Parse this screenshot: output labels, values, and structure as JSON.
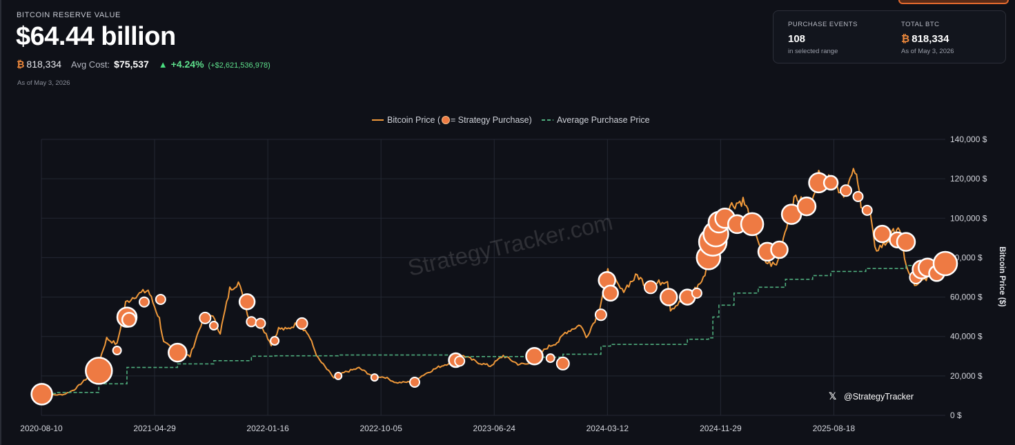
{
  "header": {
    "label": "BITCOIN RESERVE VALUE",
    "value": "$64.44 billion",
    "btc_symbol": "₿",
    "btc_amount": "818,334",
    "avg_cost_label": "Avg Cost:",
    "avg_cost": "$75,537",
    "change_pct": "+4.24%",
    "change_abs": "(+$2,621,536,978)",
    "as_of": "As of May 3, 2026"
  },
  "stats": {
    "purchase_events_label": "PURCHASE EVENTS",
    "purchase_events": "108",
    "purchase_events_sub": "in selected range",
    "total_btc_label": "TOTAL BTC",
    "total_btc": "818,334",
    "total_btc_sub": "As of May 3, 2026"
  },
  "colors": {
    "price_line": "#f0993a",
    "purchase_dot": "#ee7a43",
    "avg_line": "#4fae7e",
    "background": "#0f1118"
  },
  "chart_data": {
    "type": "line",
    "legend": {
      "placement": "top-center",
      "price": "Bitcoin Price (",
      "purchase": " = Strategy Purchase)",
      "avg": "Average Purchase Price"
    },
    "ylabel": "Bitcoin Price ($)",
    "y_ticks": [
      "0 $",
      "20,000 $",
      "40,000 $",
      "60,000 $",
      "80,000 $",
      "100,000 $",
      "120,000 $",
      "140,000 $"
    ],
    "ylim": [
      0,
      140000
    ],
    "x_ticks": [
      "2020-08-10",
      "2021-04-29",
      "2022-01-16",
      "2022-10-05",
      "2023-06-24",
      "2024-03-12",
      "2024-11-29",
      "2025-08-18"
    ],
    "xlim": [
      "2020-08-10",
      "2026-05-03"
    ],
    "grid": true,
    "watermark": "StrategyTracker.com",
    "handle": "@StrategyTracker",
    "series": [
      {
        "name": "Bitcoin Price",
        "x": [
          "2020-08-10",
          "2020-09-05",
          "2020-10-01",
          "2020-10-25",
          "2020-11-20",
          "2020-12-15",
          "2021-01-08",
          "2021-02-01",
          "2021-02-21",
          "2021-03-13",
          "2021-04-14",
          "2021-05-10",
          "2021-05-20",
          "2021-06-22",
          "2021-07-20",
          "2021-08-14",
          "2021-09-07",
          "2021-09-28",
          "2021-10-20",
          "2021-11-09",
          "2021-12-04",
          "2021-12-31",
          "2022-01-24",
          "2022-02-10",
          "2022-03-01",
          "2022-03-28",
          "2022-04-20",
          "2022-05-12",
          "2022-06-18",
          "2022-07-15",
          "2022-08-15",
          "2022-09-15",
          "2022-10-15",
          "2022-11-09",
          "2022-12-15",
          "2023-01-15",
          "2023-02-15",
          "2023-03-17",
          "2023-04-14",
          "2023-05-15",
          "2023-06-15",
          "2023-07-15",
          "2023-08-18",
          "2023-09-11",
          "2023-10-25",
          "2023-11-20",
          "2023-12-05",
          "2024-01-10",
          "2024-01-23",
          "2024-02-20",
          "2024-03-13",
          "2024-04-15",
          "2024-05-20",
          "2024-06-15",
          "2024-07-29",
          "2024-08-05",
          "2024-09-15",
          "2024-10-20",
          "2024-11-12",
          "2024-11-22",
          "2024-12-17",
          "2025-01-20",
          "2025-02-15",
          "2025-03-10",
          "2025-04-07",
          "2025-05-01",
          "2025-05-22",
          "2025-06-20",
          "2025-07-14",
          "2025-08-14",
          "2025-09-10",
          "2025-10-06",
          "2025-10-20",
          "2025-11-10",
          "2025-11-21",
          "2025-12-15",
          "2026-01-14",
          "2026-02-05",
          "2026-02-25",
          "2026-03-20",
          "2026-04-10",
          "2026-05-03"
        ],
        "y": [
          11600,
          10300,
          10600,
          13000,
          18200,
          22500,
          39000,
          36000,
          57000,
          60500,
          63500,
          49000,
          37000,
          31500,
          30000,
          46000,
          51500,
          42000,
          64000,
          67500,
          49000,
          46500,
          36000,
          44000,
          43500,
          47000,
          41000,
          29000,
          19000,
          22000,
          24000,
          20000,
          19300,
          16500,
          17000,
          21000,
          24500,
          27000,
          30300,
          27000,
          25000,
          30300,
          26000,
          26000,
          34500,
          37500,
          42000,
          46000,
          39500,
          52000,
          73000,
          63000,
          71000,
          65000,
          69000,
          54000,
          60000,
          69000,
          89000,
          99000,
          106000,
          109000,
          96000,
          78000,
          76000,
          97000,
          111000,
          105000,
          122000,
          118000,
          113000,
          124000,
          108000,
          103000,
          84000,
          87000,
          96000,
          73000,
          65000,
          70000,
          74000,
          79000
        ]
      },
      {
        "name": "Average Purchase Price",
        "x": [
          "2020-08-10",
          "2020-09-14",
          "2020-12-21",
          "2021-02-24",
          "2021-06-21",
          "2021-09-13",
          "2021-12-09",
          "2022-02-01",
          "2022-06-28",
          "2023-03-27",
          "2023-09-25",
          "2023-11-30",
          "2024-02-26",
          "2024-03-19",
          "2024-06-20",
          "2024-09-13",
          "2024-11-01",
          "2024-11-11",
          "2024-11-25",
          "2024-12-30",
          "2025-02-24",
          "2025-04-28",
          "2025-06-30",
          "2025-08-11",
          "2025-10-31",
          "2026-02-01",
          "2026-05-03"
        ],
        "y": [
          11100,
          11600,
          16000,
          24300,
          26100,
          27700,
          30000,
          30200,
          30600,
          29800,
          29500,
          31000,
          35100,
          36000,
          36000,
          38600,
          39300,
          49900,
          55900,
          62000,
          65000,
          69000,
          70900,
          73000,
          74500,
          76000,
          75537
        ]
      }
    ],
    "purchases": {
      "name": "Strategy Purchase",
      "x": [
        "2020-08-11",
        "2020-12-21",
        "2021-02-01",
        "2021-02-24",
        "2021-03-01",
        "2021-04-05",
        "2021-05-13",
        "2021-06-21",
        "2021-08-24",
        "2021-09-13",
        "2021-11-29",
        "2021-12-09",
        "2021-12-30",
        "2022-02-01",
        "2022-04-05",
        "2022-06-28",
        "2022-09-20",
        "2022-12-22",
        "2023-03-27",
        "2023-04-05",
        "2023-09-25",
        "2023-11-01",
        "2023-11-30",
        "2024-02-26",
        "2024-03-11",
        "2024-03-19",
        "2024-06-20",
        "2024-08-01",
        "2024-09-13",
        "2024-10-05",
        "2024-11-01",
        "2024-11-11",
        "2024-11-18",
        "2024-11-25",
        "2024-12-09",
        "2025-01-06",
        "2025-02-10",
        "2025-03-17",
        "2025-04-14",
        "2025-05-12",
        "2025-06-16",
        "2025-07-14",
        "2025-08-11",
        "2025-09-15",
        "2025-10-13",
        "2025-11-03",
        "2025-12-08",
        "2026-01-12",
        "2026-02-01",
        "2026-02-24",
        "2026-03-09",
        "2026-03-23",
        "2026-04-13",
        "2026-05-03"
      ],
      "y": [
        10700,
        22600,
        32900,
        49800,
        48500,
        57500,
        58800,
        31800,
        49400,
        45500,
        57600,
        47500,
        46700,
        37800,
        46600,
        20000,
        19200,
        16800,
        28000,
        27500,
        30000,
        29000,
        26300,
        51000,
        68500,
        62000,
        65000,
        60000,
        60000,
        62000,
        80000,
        88000,
        92000,
        98000,
        100000,
        97000,
        97000,
        83000,
        84000,
        102000,
        106000,
        118000,
        118000,
        114000,
        111000,
        104000,
        92000,
        89000,
        88000,
        70000,
        74000,
        75000,
        72000,
        77000
      ]
    }
  }
}
